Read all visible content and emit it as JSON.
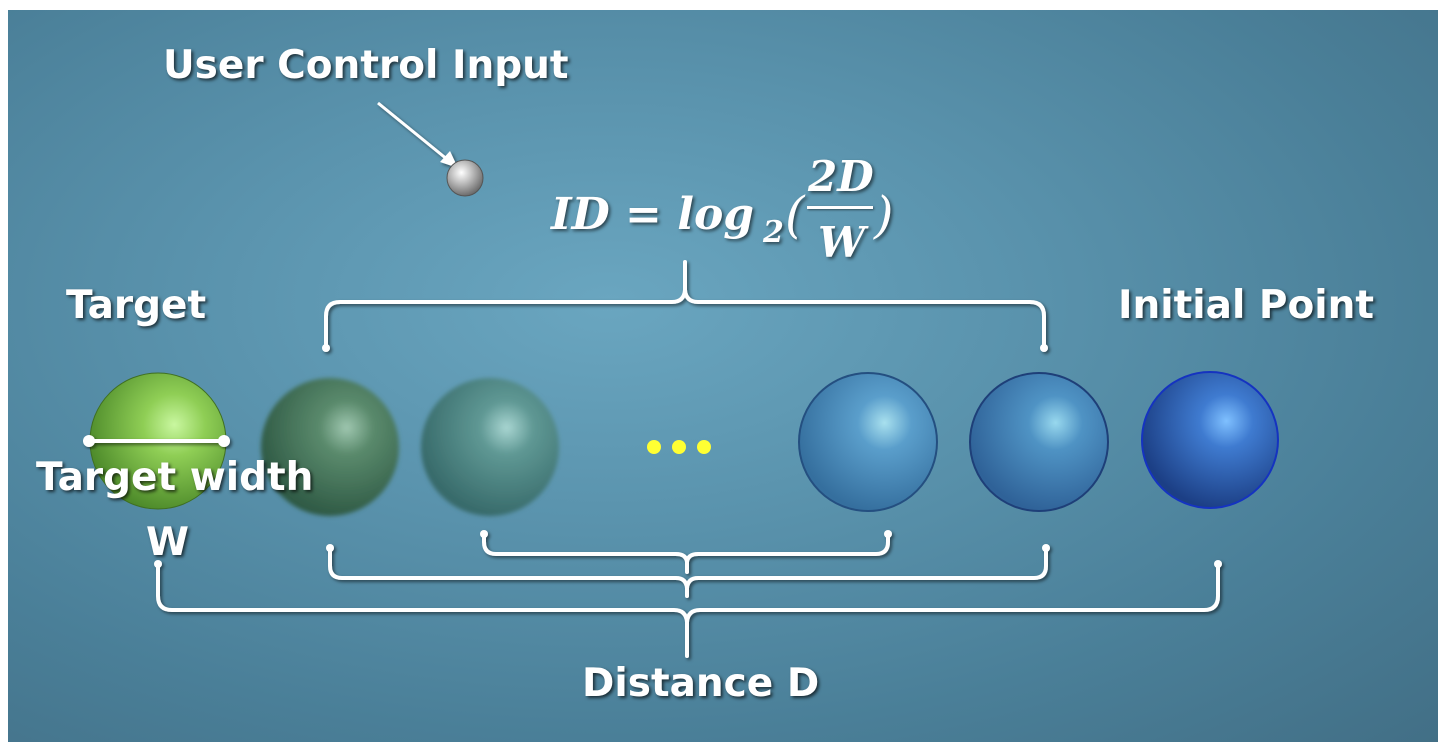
{
  "labels": {
    "user_control_input": "User Control Input",
    "target": "Target",
    "initial_point": "Initial Point",
    "target_width": "Target width",
    "w": "W",
    "distance": "Distance  D"
  },
  "formula": {
    "lhs": "ID = log",
    "subscript": "2",
    "open_paren": "(",
    "numerator": "2D",
    "denominator": "W",
    "close_paren": ")"
  },
  "ellipsis_dots": 3,
  "colors": {
    "background": "#5a93ad",
    "target_sphere": "#7cbf4a",
    "initial_sphere": "#2f63b0",
    "dots": "#ffff33",
    "cursor_ball": "#bfbfbf"
  }
}
